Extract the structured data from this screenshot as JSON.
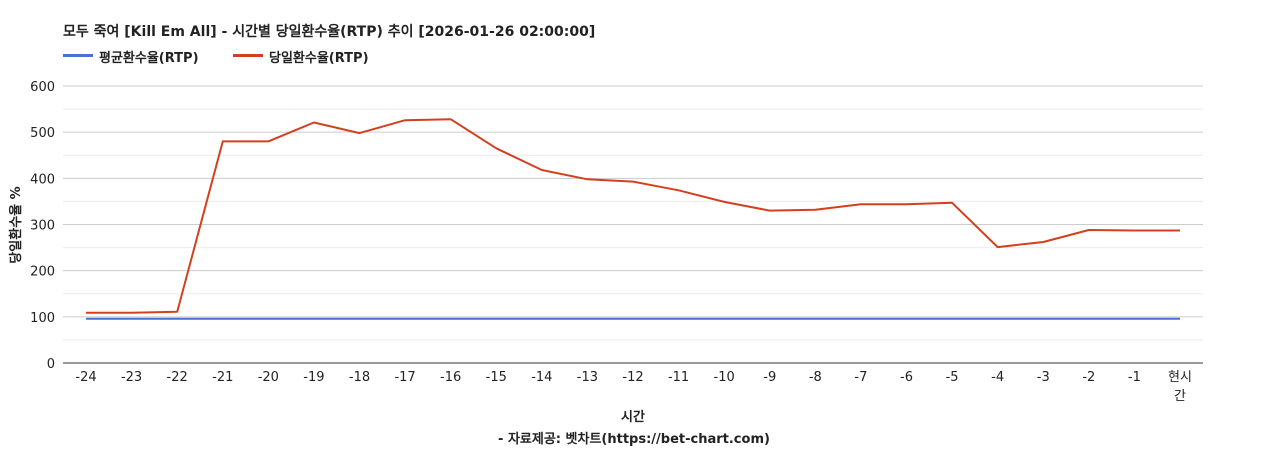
{
  "chart_data": {
    "type": "line",
    "title": "모두 죽여 [Kill Em All] - 시간별 당일환수율(RTP) 추이 [2026-01-26 02:00:00]",
    "xlabel": "시간",
    "ylabel": "당일환수율 %",
    "source": "- 자료제공: 벳차트(https://bet-chart.com)",
    "categories": [
      "-24",
      "-23",
      "-22",
      "-21",
      "-20",
      "-19",
      "-18",
      "-17",
      "-16",
      "-15",
      "-14",
      "-13",
      "-12",
      "-11",
      "-10",
      "-9",
      "-8",
      "-7",
      "-6",
      "-5",
      "-4",
      "-3",
      "-2",
      "-1",
      "현시간"
    ],
    "ylim": [
      0,
      600
    ],
    "yticks": [
      0,
      100,
      200,
      300,
      400,
      500,
      600
    ],
    "grid": true,
    "legend_position": "top-left",
    "series": [
      {
        "name": "평균환수율(RTP)",
        "color": "#4a6fd8",
        "values": [
          96,
          96,
          96,
          96,
          96,
          96,
          96,
          96,
          96,
          96,
          96,
          96,
          96,
          96,
          96,
          96,
          96,
          96,
          96,
          96,
          96,
          96,
          96,
          96,
          96
        ]
      },
      {
        "name": "당일환수율(RTP)",
        "color": "#d2401f",
        "values": [
          109,
          109,
          111,
          480,
          480,
          521,
          498,
          526,
          528,
          465,
          418,
          398,
          393,
          374,
          349,
          330,
          332,
          344,
          344,
          347,
          251,
          262,
          288,
          287,
          287
        ]
      }
    ]
  }
}
